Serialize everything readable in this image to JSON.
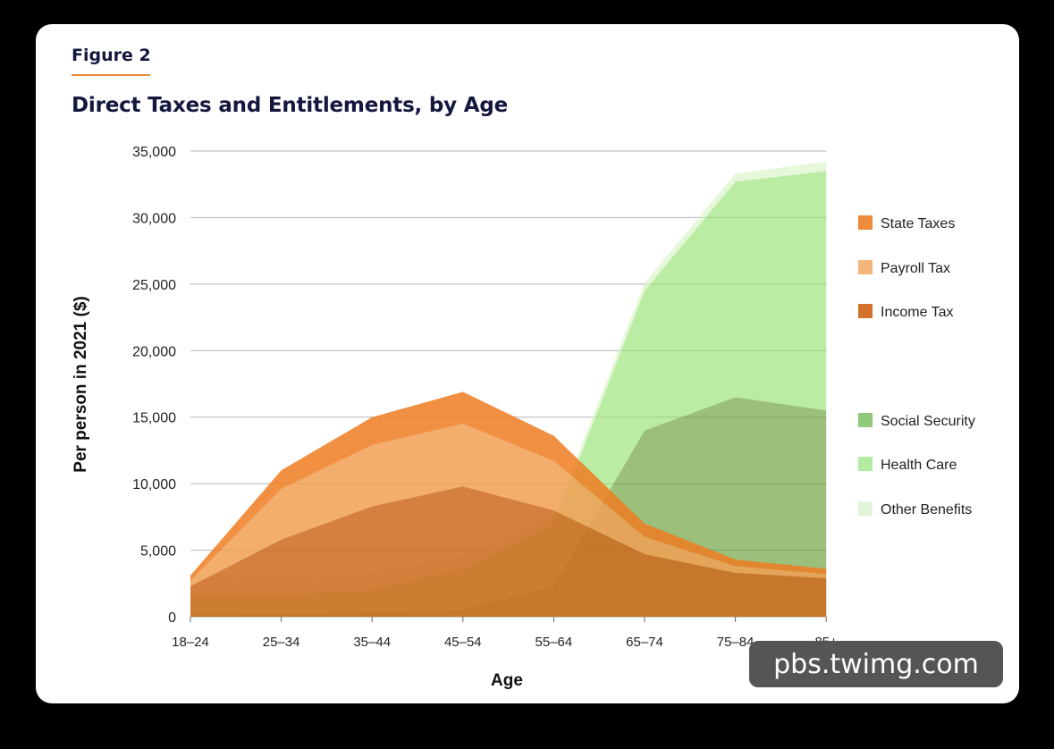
{
  "figure_label": "Figure 2",
  "watermark": "pbs.twimg.com",
  "chart_data": {
    "type": "area",
    "title": "Direct Taxes and Entitlements, by Age",
    "xlabel": "Age",
    "ylabel": "Per person in 2021 ($)",
    "categories": [
      "18–24",
      "25–34",
      "35–44",
      "45–54",
      "55–64",
      "65–74",
      "75–84",
      "85+"
    ],
    "ylim": [
      0,
      35000
    ],
    "yticks": [
      0,
      5000,
      10000,
      15000,
      20000,
      25000,
      30000,
      35000
    ],
    "ytick_labels": [
      "0",
      "5,000",
      "10,000",
      "15,000",
      "20,000",
      "25,000",
      "30,000",
      "35,000"
    ],
    "grid": true,
    "legend_position": "right",
    "stacks": [
      {
        "group": "benefits",
        "series": [
          {
            "name": "Social Security",
            "color": "#5f9a2a",
            "values": [
              100,
              200,
              300,
              500,
              2300,
              14000,
              16500,
              15500
            ]
          },
          {
            "name": "Health Care",
            "color": "#8fe06a",
            "values": [
              1500,
              1400,
              1700,
              3100,
              4700,
              10500,
              16200,
              18000
            ]
          },
          {
            "name": "Other Benefits",
            "color": "#d6f2c4",
            "values": [
              1500,
              1300,
              1200,
              900,
              500,
              600,
              600,
              700
            ]
          }
        ]
      },
      {
        "group": "taxes",
        "series": [
          {
            "name": "Income Tax",
            "color": "#cf6a1f",
            "values": [
              2300,
              5800,
              8300,
              9800,
              8000,
              4700,
              3300,
              2900
            ]
          },
          {
            "name": "Payroll Tax",
            "color": "#f1a055",
            "values": [
              400,
              3800,
              4600,
              4700,
              3700,
              1300,
              500,
              300
            ]
          },
          {
            "name": "State Taxes",
            "color": "#ee7d22",
            "values": [
              400,
              1400,
              2100,
              2400,
              1900,
              1000,
              500,
              400
            ]
          }
        ]
      }
    ],
    "legend": [
      {
        "name": "State Taxes",
        "color": "#ee8a3a"
      },
      {
        "name": "Payroll Tax",
        "color": "#f3b57a"
      },
      {
        "name": "Income Tax",
        "color": "#d2722c"
      },
      {
        "name": "Social Security",
        "color": "#8fc97a"
      },
      {
        "name": "Health Care",
        "color": "#b3eba3"
      },
      {
        "name": "Other Benefits",
        "color": "#e2f5da"
      }
    ]
  }
}
